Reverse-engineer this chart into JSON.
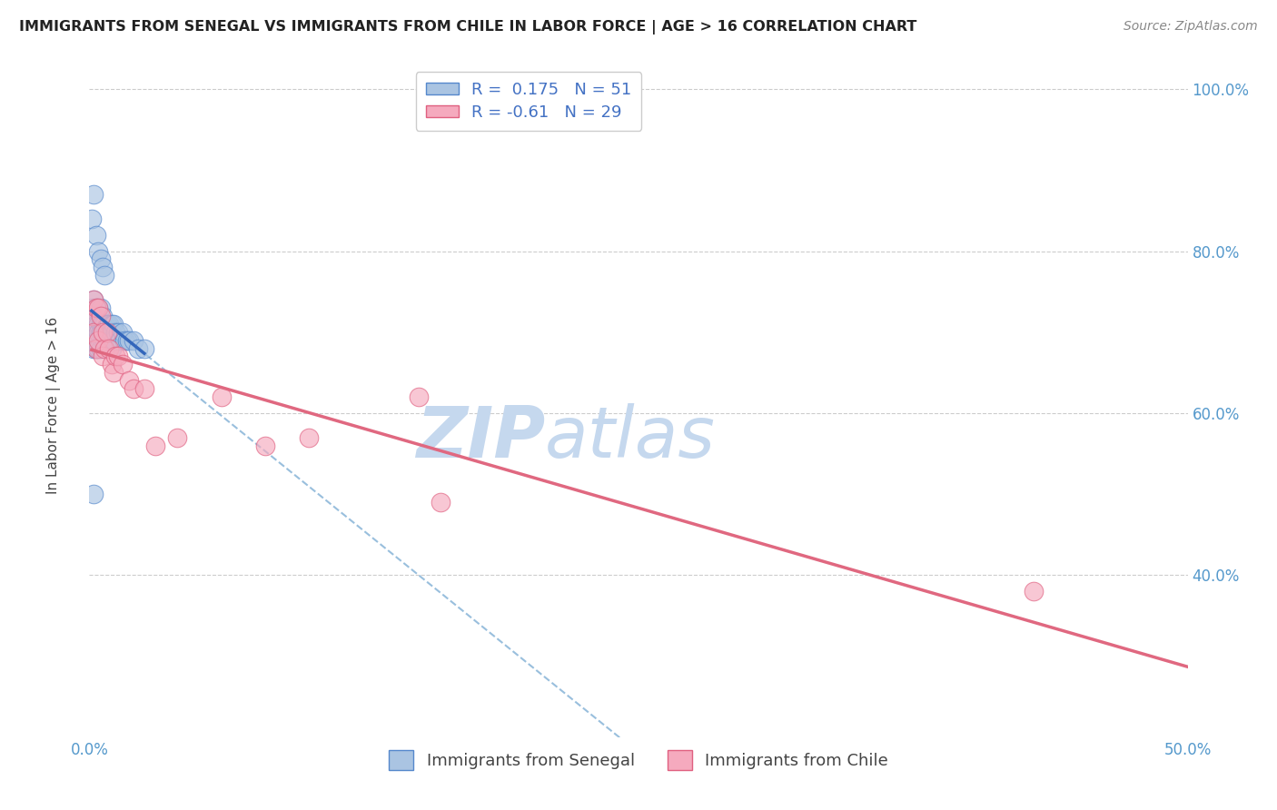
{
  "title": "IMMIGRANTS FROM SENEGAL VS IMMIGRANTS FROM CHILE IN LABOR FORCE | AGE > 16 CORRELATION CHART",
  "source": "Source: ZipAtlas.com",
  "ylabel": "In Labor Force | Age > 16",
  "xlim": [
    0.0,
    0.5
  ],
  "ylim": [
    0.2,
    1.04
  ],
  "x_ticks": [
    0.0,
    0.1,
    0.2,
    0.3,
    0.4,
    0.5
  ],
  "x_tick_labels": [
    "0.0%",
    "",
    "",
    "",
    "",
    "50.0%"
  ],
  "y_ticks": [
    0.4,
    0.6,
    0.8,
    1.0
  ],
  "y_tick_labels": [
    "40.0%",
    "60.0%",
    "80.0%",
    "100.0%"
  ],
  "senegal_R": 0.175,
  "senegal_N": 51,
  "chile_R": -0.61,
  "chile_N": 29,
  "senegal_color": "#aac4e2",
  "chile_color": "#f5aabe",
  "senegal_edge_color": "#5588cc",
  "chile_edge_color": "#e06080",
  "senegal_line_color": "#3366bb",
  "chile_line_color": "#e06880",
  "dashed_line_color": "#99bfdd",
  "watermark_zip": "ZIP",
  "watermark_atlas": "atlas",
  "watermark_color_zip": "#c5d8ee",
  "watermark_color_atlas": "#c5d8ee",
  "legend_labels": [
    "Immigrants from Senegal",
    "Immigrants from Chile"
  ],
  "senegal_x": [
    0.001,
    0.001,
    0.001,
    0.002,
    0.002,
    0.002,
    0.002,
    0.003,
    0.003,
    0.003,
    0.003,
    0.004,
    0.004,
    0.004,
    0.004,
    0.005,
    0.005,
    0.005,
    0.005,
    0.006,
    0.006,
    0.006,
    0.007,
    0.007,
    0.008,
    0.008,
    0.009,
    0.009,
    0.01,
    0.01,
    0.01,
    0.011,
    0.011,
    0.012,
    0.013,
    0.014,
    0.015,
    0.016,
    0.017,
    0.018,
    0.02,
    0.022,
    0.025,
    0.001,
    0.002,
    0.003,
    0.004,
    0.005,
    0.006,
    0.007,
    0.002
  ],
  "senegal_y": [
    0.73,
    0.71,
    0.69,
    0.74,
    0.72,
    0.7,
    0.68,
    0.73,
    0.71,
    0.69,
    0.68,
    0.73,
    0.71,
    0.7,
    0.68,
    0.73,
    0.71,
    0.7,
    0.68,
    0.72,
    0.71,
    0.69,
    0.71,
    0.69,
    0.71,
    0.7,
    0.71,
    0.69,
    0.71,
    0.7,
    0.68,
    0.71,
    0.69,
    0.7,
    0.7,
    0.69,
    0.7,
    0.69,
    0.69,
    0.69,
    0.69,
    0.68,
    0.68,
    0.84,
    0.87,
    0.82,
    0.8,
    0.79,
    0.78,
    0.77,
    0.5
  ],
  "chile_x": [
    0.001,
    0.002,
    0.002,
    0.003,
    0.003,
    0.004,
    0.004,
    0.005,
    0.006,
    0.006,
    0.007,
    0.008,
    0.009,
    0.01,
    0.011,
    0.012,
    0.013,
    0.015,
    0.018,
    0.02,
    0.025,
    0.03,
    0.04,
    0.06,
    0.08,
    0.1,
    0.15,
    0.16,
    0.43
  ],
  "chile_y": [
    0.72,
    0.74,
    0.7,
    0.73,
    0.68,
    0.73,
    0.69,
    0.72,
    0.7,
    0.67,
    0.68,
    0.7,
    0.68,
    0.66,
    0.65,
    0.67,
    0.67,
    0.66,
    0.64,
    0.63,
    0.63,
    0.56,
    0.57,
    0.62,
    0.56,
    0.57,
    0.62,
    0.49,
    0.38
  ]
}
